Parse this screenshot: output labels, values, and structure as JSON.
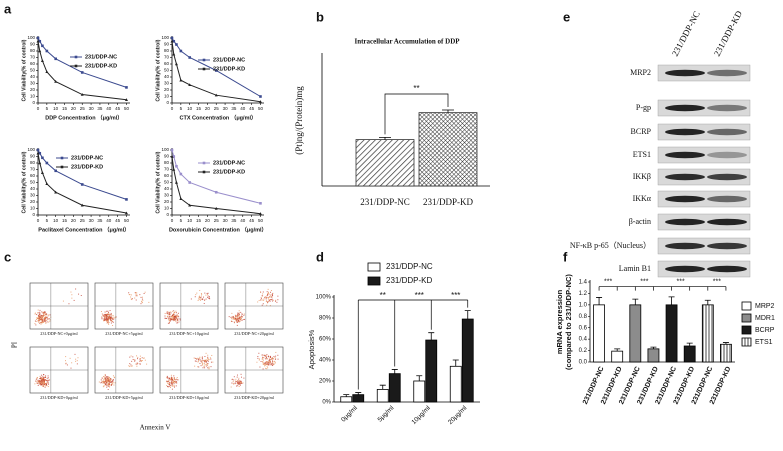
{
  "panel_labels": [
    "a",
    "b",
    "c",
    "d",
    "e",
    "f"
  ],
  "chart_data": [
    {
      "type": "line",
      "x": [
        0,
        1,
        2.5,
        5,
        10,
        25,
        50
      ],
      "xlim": [
        0,
        52
      ],
      "xticks": [
        0,
        5,
        10,
        15,
        20,
        25,
        30,
        35,
        40,
        45,
        50
      ],
      "ylim": [
        0,
        100
      ],
      "yticks": [
        0,
        10,
        20,
        30,
        40,
        50,
        60,
        70,
        80,
        90,
        100
      ],
      "x_label": "DDP Concentration （μg/ml）",
      "y_label": "Cell Viability(% of control)",
      "series": [
        {
          "name": "231/DDP-NC",
          "color": "#3b4a8f",
          "values": [
            100,
            95,
            88,
            80,
            68,
            47,
            24
          ]
        },
        {
          "name": "231/DDP-KD",
          "color": "#222222",
          "values": [
            95,
            80,
            65,
            48,
            33,
            13,
            5
          ]
        }
      ]
    },
    {
      "type": "line",
      "x": [
        0,
        1,
        2.5,
        5,
        10,
        25,
        50
      ],
      "xlim": [
        0,
        52
      ],
      "xticks": [
        0,
        5,
        10,
        15,
        20,
        25,
        30,
        35,
        40,
        45,
        50
      ],
      "ylim": [
        0,
        100
      ],
      "yticks": [
        0,
        10,
        20,
        30,
        40,
        50,
        60,
        70,
        80,
        90,
        100
      ],
      "x_label": "CTX Concentration （μg/ml）",
      "y_label": "Cell Viability(% of control)",
      "series": [
        {
          "name": "231/DDP-NC",
          "color": "#3b4a8f",
          "values": [
            100,
            95,
            90,
            80,
            70,
            50,
            10
          ]
        },
        {
          "name": "231/DDP-KD",
          "color": "#222222",
          "values": [
            95,
            75,
            60,
            35,
            28,
            12,
            2
          ]
        }
      ]
    },
    {
      "type": "line",
      "x": [
        0,
        1,
        2.5,
        5,
        10,
        25,
        50
      ],
      "xlim": [
        0,
        52
      ],
      "xticks": [
        0,
        5,
        10,
        15,
        20,
        25,
        30,
        35,
        40,
        45,
        50
      ],
      "ylim": [
        0,
        100
      ],
      "yticks": [
        0,
        10,
        20,
        30,
        40,
        50,
        60,
        70,
        80,
        90,
        100
      ],
      "x_label": "Paclitaxel Concentration （μg/ml）",
      "y_label": "Cell Viability(% of control)",
      "series": [
        {
          "name": "231/DDP-NC",
          "color": "#3b4a8f",
          "values": [
            100,
            95,
            88,
            80,
            68,
            47,
            24
          ]
        },
        {
          "name": "231/DDP-KD",
          "color": "#222222",
          "values": [
            95,
            80,
            65,
            48,
            35,
            15,
            3
          ]
        }
      ]
    },
    {
      "type": "line",
      "x": [
        0,
        1,
        2.5,
        5,
        10,
        25,
        50
      ],
      "xlim": [
        0,
        52
      ],
      "xticks": [
        0,
        5,
        10,
        15,
        20,
        25,
        30,
        35,
        40,
        45,
        50
      ],
      "ylim": [
        0,
        100
      ],
      "yticks": [
        0,
        10,
        20,
        30,
        40,
        50,
        60,
        70,
        80,
        90,
        100
      ],
      "x_label": "Doxorubicin Concentration （μg/ml）",
      "y_label": "Cell Viability(% of control)",
      "series": [
        {
          "name": "231/DDP-NC",
          "color": "#9a8fcc",
          "values": [
            100,
            90,
            75,
            63,
            50,
            35,
            18
          ]
        },
        {
          "name": "231/DDP-KD",
          "color": "#222222",
          "values": [
            90,
            70,
            50,
            25,
            15,
            10,
            2
          ]
        }
      ]
    },
    {
      "type": "bar",
      "title": "Intracellular Accumulation of DDP",
      "y_label": "(Pt)ng/(Protein)mg",
      "categories": [
        "231/DDP-NC",
        "231/DDP-KD"
      ],
      "values": [
        0.62,
        0.98
      ],
      "errors": [
        0.03,
        0.035
      ],
      "patterns": [
        "diagonal",
        "crosshatch"
      ],
      "color": "#333333",
      "ylim": [
        0,
        1.75
      ],
      "annotations": [
        "**"
      ]
    },
    {
      "type": "grouped_bar",
      "y_label": "Apoptosis%",
      "categories": [
        "0μg/ml",
        "5μg/ml",
        "10μg/ml",
        "20μg/ml"
      ],
      "series": [
        {
          "name": "231/DDP-NC",
          "color": "#ffffff",
          "values": [
            5,
            12,
            20,
            34
          ],
          "errors": [
            2,
            4,
            5,
            6
          ]
        },
        {
          "name": "231/DDP-KD",
          "color": "#1a1a1a",
          "values": [
            7,
            27,
            59,
            79
          ],
          "errors": [
            2,
            4,
            7,
            8
          ]
        }
      ],
      "ylim": [
        0,
        100
      ],
      "yticks": [
        {
          "value": 0,
          "label": "0%"
        },
        {
          "value": 20,
          "label": "20%"
        },
        {
          "value": 40,
          "label": "40%"
        },
        {
          "value": 60,
          "label": "60%"
        },
        {
          "value": 80,
          "label": "80%"
        },
        {
          "value": 100,
          "label": "100%"
        }
      ],
      "annotations": [
        "**",
        "***",
        "***"
      ]
    },
    {
      "type": "grouped_bar",
      "y_label": [
        "mRNA expression",
        "(compared to 231/DDP-NC)"
      ],
      "categories": [
        "231/DDP-NC",
        "231/DDP-KD",
        "231/DDP-NC",
        "231/DDP-KD",
        "231/DDP-NC",
        "231/DDP-KD",
        "231/DDP-NC",
        "231/DDP-KD"
      ],
      "series": [
        {
          "name": "MRP2",
          "color": "#ffffff",
          "values": [
            1.0,
            0.19,
            null,
            null,
            null,
            null,
            null,
            null
          ],
          "errors": [
            0.13,
            0.04,
            null,
            null,
            null,
            null,
            null,
            null
          ]
        },
        {
          "name": "MDR1",
          "color": "#8c8c8c",
          "values": [
            null,
            null,
            1.0,
            0.23,
            null,
            null,
            null,
            null
          ],
          "errors": [
            null,
            null,
            0.1,
            0.03,
            null,
            null,
            null,
            null
          ]
        },
        {
          "name": "BCRP",
          "color": "#1a1a1a",
          "values": [
            null,
            null,
            null,
            null,
            1.0,
            0.28,
            null,
            null
          ],
          "errors": [
            null,
            null,
            null,
            null,
            0.14,
            0.05,
            null,
            null
          ]
        },
        {
          "name": "ETS1",
          "color": "#ffffff",
          "pattern": "vertical",
          "values": [
            null,
            null,
            null,
            null,
            null,
            null,
            1.0,
            0.31
          ],
          "errors": [
            null,
            null,
            null,
            null,
            null,
            null,
            0.08,
            0.03
          ]
        }
      ],
      "ylim": [
        0,
        1.4
      ],
      "yticks": [
        {
          "value": 0,
          "label": "0.0"
        },
        {
          "value": 0.2,
          "label": "0.2"
        },
        {
          "value": 0.4,
          "label": "0.4"
        },
        {
          "value": 0.6,
          "label": "0.6"
        },
        {
          "value": 0.8,
          "label": "0.8"
        },
        {
          "value": 1.0,
          "label": "1.0"
        },
        {
          "value": 1.2,
          "label": "1.2"
        },
        {
          "value": 1.4,
          "label": "1.4"
        }
      ],
      "annotations": [
        "***",
        "***",
        "***",
        "***"
      ]
    }
  ],
  "flow_cytometry": {
    "y_label": "PI",
    "x_label": "Annexin V",
    "plots": [
      "231/DDP-NC+0μg/ml",
      "231/DDP-NC+5μg/ml",
      "231/DDP-NC+10μg/ml",
      "231/DDP-NC+20μg/ml",
      "231/DDP-KD+0μg/ml",
      "231/DDP-KD+5μg/ml",
      "231/DDP-KD+10μg/ml",
      "231/DDP-KD+20μg/ml"
    ]
  },
  "western_blot": {
    "lanes": [
      "231/DDP-NC",
      "231/DDP-KD"
    ],
    "proteins": [
      "MRP2",
      "P-gp",
      "BCRP",
      "ETS1",
      "IKKβ",
      "IKKα",
      "β-actin",
      "NF-κB p-65（Nucleus）",
      "Lamin B1"
    ]
  }
}
